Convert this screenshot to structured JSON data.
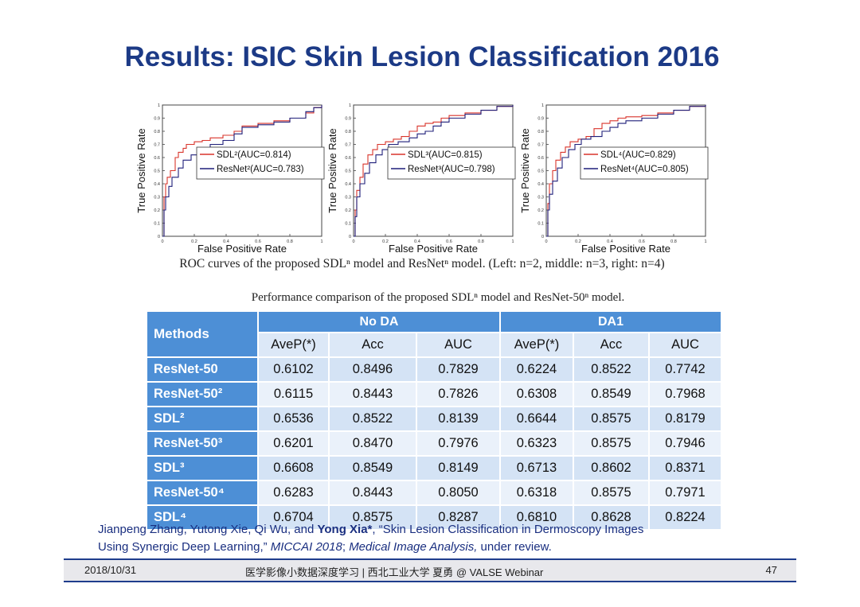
{
  "title": "Results: ISIC Skin Lesion Classification 2016",
  "chart_data": [
    {
      "type": "line",
      "xlabel": "False Positive Rate",
      "ylabel": "True Positive Rate",
      "xlim": [
        0,
        1
      ],
      "ylim": [
        0,
        1
      ],
      "x_ticks": [
        "0",
        "0.2",
        "0.4",
        "0.6",
        "0.8",
        "1"
      ],
      "y_ticks": [
        "0",
        "0.1",
        "0.2",
        "0.3",
        "0.4",
        "0.5",
        "0.6",
        "0.7",
        "0.8",
        "0.9",
        "1"
      ],
      "legend": "center-right",
      "series": [
        {
          "name": "SDL²(AUC=0.814)",
          "color": "#d9342b",
          "x": [
            0,
            0.01,
            0.02,
            0.03,
            0.05,
            0.08,
            0.1,
            0.13,
            0.15,
            0.2,
            0.25,
            0.3,
            0.38,
            0.45,
            0.5,
            0.6,
            0.7,
            0.8,
            0.9,
            0.95,
            1.0
          ],
          "y": [
            0,
            0.3,
            0.4,
            0.45,
            0.5,
            0.6,
            0.64,
            0.67,
            0.7,
            0.72,
            0.73,
            0.75,
            0.77,
            0.8,
            0.84,
            0.86,
            0.88,
            0.9,
            0.94,
            0.98,
            1.0
          ]
        },
        {
          "name": "ResNet²(AUC=0.783)",
          "color": "#1f1f7a",
          "x": [
            0,
            0.01,
            0.02,
            0.04,
            0.06,
            0.1,
            0.13,
            0.18,
            0.22,
            0.3,
            0.38,
            0.45,
            0.5,
            0.6,
            0.7,
            0.8,
            0.9,
            0.95,
            1.0
          ],
          "y": [
            0,
            0.2,
            0.3,
            0.38,
            0.45,
            0.52,
            0.58,
            0.62,
            0.66,
            0.7,
            0.73,
            0.78,
            0.83,
            0.85,
            0.87,
            0.9,
            0.95,
            0.98,
            1.0
          ]
        }
      ]
    },
    {
      "type": "line",
      "xlabel": "False Positive Rate",
      "ylabel": "True Positive Rate",
      "xlim": [
        0,
        1
      ],
      "ylim": [
        0,
        1
      ],
      "x_ticks": [
        "0",
        "0.2",
        "0.4",
        "0.6",
        "0.8",
        "1"
      ],
      "y_ticks": [
        "0",
        "0.1",
        "0.2",
        "0.3",
        "0.4",
        "0.5",
        "0.6",
        "0.7",
        "0.8",
        "0.9",
        "1"
      ],
      "legend": "center-right",
      "series": [
        {
          "name": "SDL³(AUC=0.815)",
          "color": "#d9342b",
          "x": [
            0,
            0.01,
            0.02,
            0.04,
            0.06,
            0.09,
            0.12,
            0.15,
            0.2,
            0.25,
            0.3,
            0.35,
            0.4,
            0.45,
            0.5,
            0.55,
            0.6,
            0.7,
            0.8,
            0.9,
            1.0
          ],
          "y": [
            0,
            0.2,
            0.35,
            0.45,
            0.55,
            0.62,
            0.66,
            0.7,
            0.72,
            0.74,
            0.76,
            0.8,
            0.84,
            0.86,
            0.87,
            0.9,
            0.92,
            0.94,
            0.96,
            0.99,
            1.0
          ]
        },
        {
          "name": "ResNet³(AUC=0.798)",
          "color": "#1f1f7a",
          "x": [
            0,
            0.01,
            0.02,
            0.04,
            0.07,
            0.1,
            0.14,
            0.18,
            0.22,
            0.28,
            0.35,
            0.4,
            0.45,
            0.5,
            0.55,
            0.6,
            0.7,
            0.8,
            0.9,
            1.0
          ],
          "y": [
            0,
            0.15,
            0.3,
            0.4,
            0.48,
            0.56,
            0.62,
            0.66,
            0.7,
            0.72,
            0.75,
            0.78,
            0.8,
            0.84,
            0.87,
            0.9,
            0.93,
            0.96,
            0.99,
            1.0
          ]
        }
      ]
    },
    {
      "type": "line",
      "xlabel": "False Positive Rate",
      "ylabel": "True Positive Rate",
      "xlim": [
        0,
        1
      ],
      "ylim": [
        0,
        1
      ],
      "x_ticks": [
        "0",
        "0.2",
        "0.4",
        "0.6",
        "0.8",
        "1"
      ],
      "y_ticks": [
        "0",
        "0.1",
        "0.2",
        "0.3",
        "0.4",
        "0.5",
        "0.6",
        "0.7",
        "0.8",
        "0.9",
        "1"
      ],
      "legend": "center-right",
      "series": [
        {
          "name": "SDL⁴(AUC=0.829)",
          "color": "#d9342b",
          "x": [
            0,
            0.01,
            0.02,
            0.04,
            0.06,
            0.09,
            0.12,
            0.15,
            0.2,
            0.25,
            0.3,
            0.35,
            0.4,
            0.45,
            0.5,
            0.6,
            0.7,
            0.8,
            0.9,
            1.0
          ],
          "y": [
            0,
            0.25,
            0.4,
            0.5,
            0.58,
            0.64,
            0.68,
            0.72,
            0.74,
            0.76,
            0.82,
            0.86,
            0.88,
            0.9,
            0.91,
            0.92,
            0.94,
            0.96,
            0.99,
            1.0
          ]
        },
        {
          "name": "ResNet⁴(AUC=0.805)",
          "color": "#1f1f7a",
          "x": [
            0,
            0.01,
            0.02,
            0.04,
            0.07,
            0.1,
            0.14,
            0.18,
            0.22,
            0.28,
            0.35,
            0.4,
            0.45,
            0.5,
            0.6,
            0.7,
            0.8,
            0.9,
            1.0
          ],
          "y": [
            0,
            0.2,
            0.32,
            0.42,
            0.52,
            0.6,
            0.66,
            0.7,
            0.74,
            0.76,
            0.8,
            0.83,
            0.86,
            0.88,
            0.9,
            0.93,
            0.96,
            0.99,
            1.0
          ]
        }
      ]
    },
    {
      "type": "table",
      "columns": [
        "Methods",
        "AveP(*)",
        "Acc",
        "AUC",
        "AveP(*)",
        "Acc",
        "AUC"
      ],
      "rows": [
        [
          "ResNet-50",
          0.6102,
          0.8496,
          0.7829,
          0.6224,
          0.8522,
          0.7742
        ],
        [
          "ResNet-50²",
          0.6115,
          0.8443,
          0.7826,
          0.6308,
          0.8549,
          0.7968
        ],
        [
          "SDL²",
          0.6536,
          0.8522,
          0.8139,
          0.6644,
          0.8575,
          0.8179
        ],
        [
          "ResNet-50³",
          0.6201,
          0.847,
          0.7976,
          0.6323,
          0.8575,
          0.7946
        ],
        [
          "SDL³",
          0.6608,
          0.8549,
          0.8149,
          0.6713,
          0.8602,
          0.8371
        ],
        [
          "ResNet-50⁴",
          0.6283,
          0.8443,
          0.805,
          0.6318,
          0.8575,
          0.7971
        ],
        [
          "SDL⁴",
          0.6704,
          0.8575,
          0.8287,
          0.681,
          0.8628,
          0.8224
        ]
      ]
    }
  ],
  "roc_caption": "ROC curves of the proposed SDLⁿ model and ResNetⁿ model. (Left: n=2, middle: n=3, right: n=4)",
  "table": {
    "caption": "Performance comparison of the proposed SDLⁿ model and ResNet-50ⁿ model.",
    "methods_header": "Methods",
    "group_headers": [
      "No DA",
      "DA1"
    ],
    "sub_headers": [
      "AveP(*)",
      "Acc",
      "AUC",
      "AveP(*)",
      "Acc",
      "AUC"
    ],
    "rows": [
      {
        "label": "ResNet-50",
        "values": [
          "0.6102",
          "0.8496",
          "0.7829",
          "0.6224",
          "0.8522",
          "0.7742"
        ]
      },
      {
        "label": "ResNet-50²",
        "values": [
          "0.6115",
          "0.8443",
          "0.7826",
          "0.6308",
          "0.8549",
          "0.7968"
        ]
      },
      {
        "label": "SDL²",
        "values": [
          "0.6536",
          "0.8522",
          "0.8139",
          "0.6644",
          "0.8575",
          "0.8179"
        ]
      },
      {
        "label": "ResNet-50³",
        "values": [
          "0.6201",
          "0.8470",
          "0.7976",
          "0.6323",
          "0.8575",
          "0.7946"
        ]
      },
      {
        "label": "SDL³",
        "values": [
          "0.6608",
          "0.8549",
          "0.8149",
          "0.6713",
          "0.8602",
          "0.8371"
        ]
      },
      {
        "label": "ResNet-50⁴",
        "values": [
          "0.6283",
          "0.8443",
          "0.8050",
          "0.6318",
          "0.8575",
          "0.7971"
        ]
      },
      {
        "label": "SDL⁴",
        "values": [
          "0.6704",
          "0.8575",
          "0.8287",
          "0.6810",
          "0.8628",
          "0.8224"
        ]
      }
    ]
  },
  "citation": {
    "authors_plain": "Jianpeng Zhang, Yutong Xie, Qi Wu, and ",
    "author_bold": "Yong Xia*",
    "title_text": ", “Skin Lesion Classification in Dermoscopy Images",
    "line2_start": "Using Synergic Deep Learning,” ",
    "venue1": "MICCAI 2018",
    "separator": "; ",
    "venue2": "Medical Image Analysis,",
    "status": " under review."
  },
  "footer": {
    "date": "2018/10/31",
    "center": "医学影像小数据深度学习 | 西北工业大学 夏勇 @ VALSE Webinar",
    "page": "47"
  }
}
